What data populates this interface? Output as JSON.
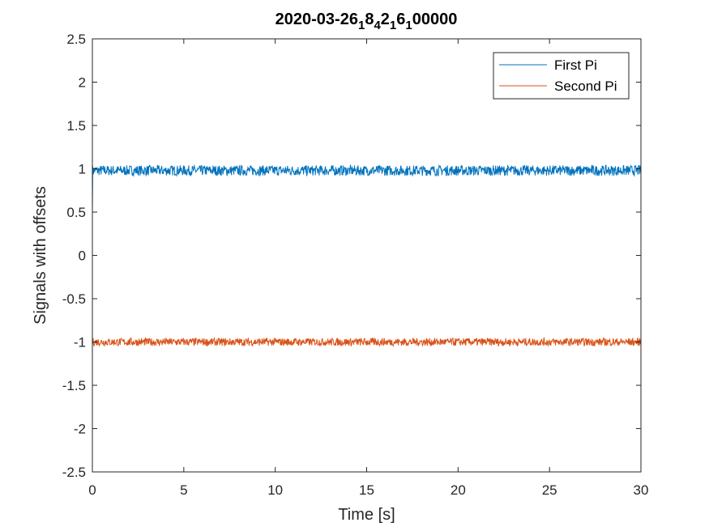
{
  "chart_data": {
    "type": "line",
    "title": "2020-03-26_18_4_2_1_6_100000",
    "title_parts": [
      {
        "text": "2020-03-26",
        "sub": false
      },
      {
        "text": "1",
        "sub": true
      },
      {
        "text": "8",
        "sub": false
      },
      {
        "text": "4",
        "sub": true
      },
      {
        "text": "2",
        "sub": false
      },
      {
        "text": "1",
        "sub": true
      },
      {
        "text": "6",
        "sub": false
      },
      {
        "text": "1",
        "sub": true
      },
      {
        "text": "00000",
        "sub": false
      }
    ],
    "xlabel": "Time [s]",
    "ylabel": "Signals with offsets",
    "xlim": [
      0,
      30
    ],
    "ylim": [
      -2.5,
      2.5
    ],
    "xticks": [
      0,
      5,
      10,
      15,
      20,
      25,
      30
    ],
    "yticks": [
      2.5,
      2,
      1.5,
      1,
      0.5,
      0,
      -0.5,
      -1,
      -1.5,
      -2,
      -2.5
    ],
    "grid": false,
    "legend_position": "top-right",
    "series": [
      {
        "name": "First Pi",
        "color": "#0072BD",
        "center": 0.98,
        "noise_amplitude": 0.06,
        "start_value": 0.5,
        "x": [
          0,
          30
        ]
      },
      {
        "name": "Second Pi",
        "color": "#D95319",
        "center": -1.0,
        "noise_amplitude": 0.045,
        "x": [
          0,
          30
        ]
      }
    ]
  }
}
